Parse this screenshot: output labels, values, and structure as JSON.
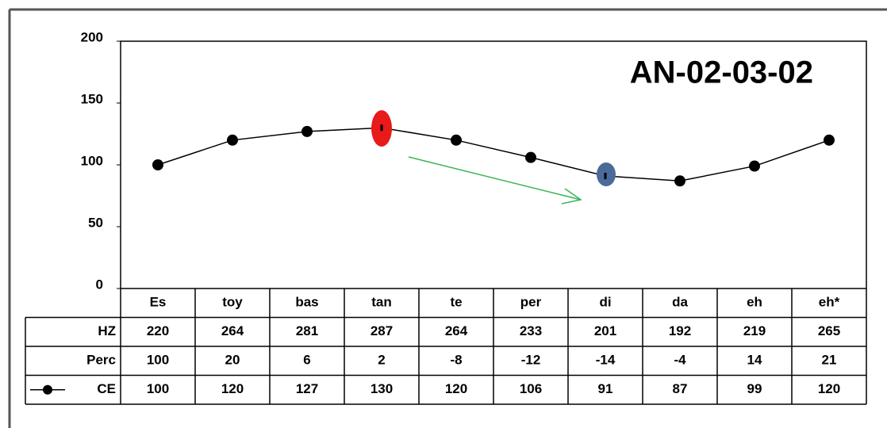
{
  "chart_data": {
    "type": "line",
    "annotation": "AN-02-03-02",
    "categories": [
      "Es",
      "toy",
      "bas",
      "tan",
      "te",
      "per",
      "di",
      "da",
      "eh",
      "eh*"
    ],
    "series": [
      {
        "name": "CE",
        "color": "#000000",
        "values": [
          100,
          120,
          127,
          130,
          120,
          106,
          91,
          87,
          99,
          120
        ]
      }
    ],
    "data_table": [
      {
        "name": "HZ",
        "values": [
          220,
          264,
          281,
          287,
          264,
          233,
          201,
          192,
          219,
          265
        ]
      },
      {
        "name": "Perc",
        "values": [
          100,
          20,
          6,
          2,
          -8,
          -12,
          -14,
          -4,
          14,
          21
        ]
      }
    ],
    "ylim": [
      0,
      200
    ],
    "yticks": [
      0,
      50,
      100,
      150,
      200
    ],
    "grid": false
  }
}
